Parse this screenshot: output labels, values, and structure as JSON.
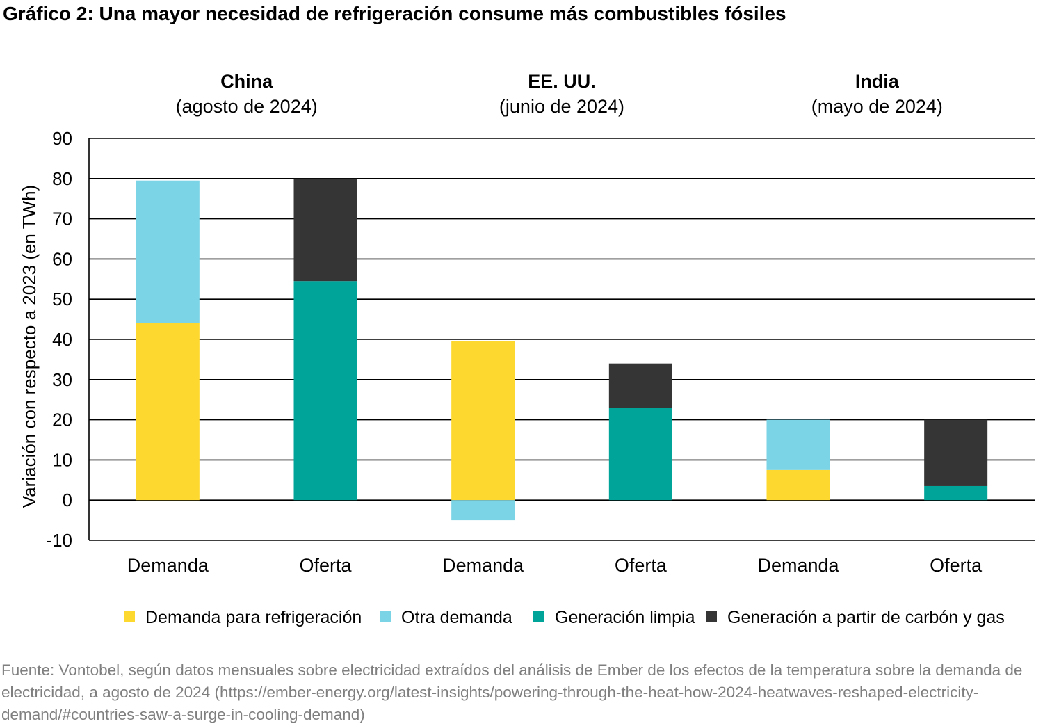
{
  "chart_data": {
    "type": "bar",
    "stacked": true,
    "title": "Gráfico 2: Una mayor necesidad de refrigeración consume más combustibles fósiles",
    "ylabel": "Variación con respecto a 2023 (en TWh)",
    "xlabel": "",
    "ylim": [
      -10,
      90
    ],
    "yticks": [
      90,
      80,
      70,
      60,
      50,
      40,
      30,
      20,
      10,
      0,
      -10
    ],
    "grid": true,
    "legend_position": "bottom",
    "groups": [
      {
        "name": "China",
        "period": "(agosto de 2024)"
      },
      {
        "name": "EE. UU.",
        "period": "(junio de 2024)"
      },
      {
        "name": "India",
        "period": "(mayo de 2024)"
      }
    ],
    "categories": [
      "Demanda",
      "Oferta",
      "Demanda",
      "Oferta",
      "Demanda",
      "Oferta"
    ],
    "series": [
      {
        "name": "Demanda para refrigeración",
        "color": "#FDD82F",
        "values": [
          44,
          0,
          39.5,
          0,
          7.5,
          0
        ]
      },
      {
        "name": "Otra demanda",
        "color": "#7BD3E6",
        "values": [
          35.5,
          0,
          -5,
          0,
          12.5,
          0
        ]
      },
      {
        "name": "Generación limpia",
        "color": "#00A499",
        "values": [
          0,
          54.5,
          0,
          23,
          0,
          3.5
        ]
      },
      {
        "name": "Generación a partir de carbón y gas",
        "color": "#353535",
        "values": [
          0,
          25.5,
          0,
          11,
          0,
          16.5
        ]
      }
    ]
  },
  "source": "Fuente: Vontobel, según datos mensuales sobre electricidad extraídos del análisis de Ember de los efectos de la temperatura sobre la demanda de electricidad, a agosto de 2024 (https://ember-energy.org/latest-insights/powering-through-the-heat-how-2024-heatwaves-reshaped-electricity-demand/#countries-saw-a-surge-in-cooling-demand)"
}
